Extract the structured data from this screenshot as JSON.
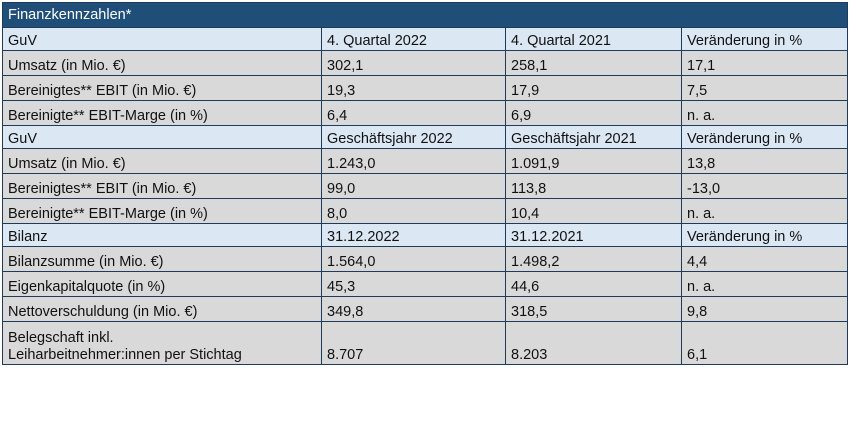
{
  "title": "Finanzkennzahlen*",
  "sections": [
    {
      "header": [
        "GuV",
        "4. Quartal 2022",
        "4. Quartal 2021",
        "Veränderung in %"
      ],
      "rows": [
        [
          "Umsatz (in Mio. €)",
          "302,1",
          "258,1",
          "17,1"
        ],
        [
          "Bereinigtes** EBIT (in Mio. €)",
          "19,3",
          "17,9",
          "7,5"
        ],
        [
          "Bereinigte** EBIT-Marge (in %)",
          "6,4",
          "6,9",
          "n. a."
        ]
      ]
    },
    {
      "header": [
        "GuV",
        "Geschäftsjahr 2022",
        "Geschäftsjahr 2021",
        "Veränderung in %"
      ],
      "rows": [
        [
          "Umsatz (in Mio. €)",
          "1.243,0",
          "1.091,9",
          "13,8"
        ],
        [
          "Bereinigtes** EBIT (in Mio. €)",
          "99,0",
          "113,8",
          "-13,0"
        ],
        [
          "Bereinigte** EBIT-Marge (in %)",
          "8,0",
          "10,4",
          "n. a."
        ]
      ]
    },
    {
      "header": [
        "Bilanz",
        "31.12.2022",
        "31.12.2021",
        "Veränderung in %"
      ],
      "rows": [
        [
          "Bilanzsumme (in Mio. €)",
          "1.564,0",
          "1.498,2",
          "4,4"
        ],
        [
          "Eigenkapitalquote (in %)",
          "45,3",
          " 44,6",
          "n. a."
        ],
        [
          "Nettoverschuldung (in Mio. €)",
          "349,8",
          "318,5",
          "9,8"
        ]
      ]
    }
  ],
  "last_row": {
    "label_line1": "Belegschaft inkl.",
    "label_line2": "Leiharbeitnehmer:innen per Stichtag",
    "values": [
      "8.707",
      "8.203",
      "6,1"
    ]
  }
}
